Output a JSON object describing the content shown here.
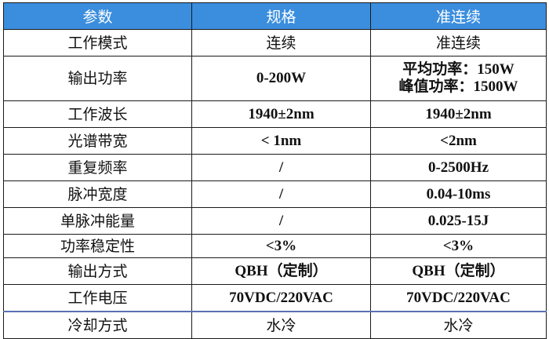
{
  "header": [
    "参数",
    "规格",
    "准连续"
  ],
  "rows": [
    {
      "param": "工作模式",
      "spec": "连续",
      "qcw": "准连续"
    },
    {
      "param": "输出功率",
      "spec": "0-200W",
      "qcw_lines": [
        "平均功率：150W",
        "峰值功率：1500W"
      ]
    },
    {
      "param": "工作波长",
      "spec": "1940±2nm",
      "qcw": "1940±2nm"
    },
    {
      "param": "光谱带宽",
      "spec": "< 1nm",
      "qcw": "<2nm"
    },
    {
      "param": "重复频率",
      "spec": "/",
      "qcw": "0-2500Hz"
    },
    {
      "param": "脉冲宽度",
      "spec": "/",
      "qcw": "0.04-10ms"
    },
    {
      "param": "单脉冲能量",
      "spec": "/",
      "qcw": "0.025-15J"
    },
    {
      "param": "功率稳定性",
      "spec": "<3%",
      "qcw": "<3%"
    },
    {
      "param": "输出方式",
      "spec": "QBH（定制）",
      "qcw": "QBH（定制）"
    },
    {
      "param": "工作电压",
      "spec": "70VDC/220VAC",
      "qcw": "70VDC/220VAC"
    },
    {
      "param": "冷却方式",
      "spec": "水冷",
      "qcw": "水冷"
    }
  ],
  "colors": {
    "header_bg": "#3b8ede",
    "header_text": "#ffffff",
    "separator": "#5a6fb5"
  }
}
